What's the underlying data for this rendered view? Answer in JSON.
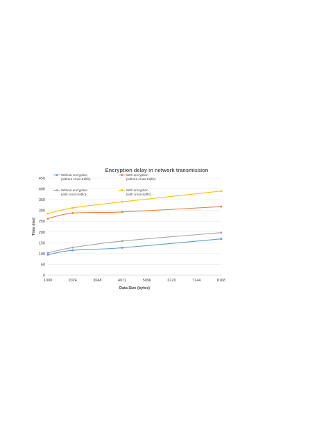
{
  "chart_data": {
    "type": "line",
    "title": "Encryption delay in network transmission",
    "xlabel": "Data Size (bytes)",
    "ylabel": "Time (ms)",
    "x_ticks": [
      1000,
      2024,
      3048,
      4072,
      5096,
      6120,
      7144,
      8168
    ],
    "xlim": [
      1000,
      8168
    ],
    "ylim": [
      0,
      450
    ],
    "y_ticks": [
      0,
      50,
      100,
      150,
      200,
      250,
      300,
      350,
      400,
      450
    ],
    "grid": true,
    "legend_position": "top-left",
    "x": [
      1000,
      2024,
      4072,
      8168
    ],
    "series": [
      {
        "name": "Without encryption (without cross-traffic)",
        "name_lines": [
          "Without encryption",
          "(without cross-traffic)"
        ],
        "color": "#5b9bd5",
        "values": [
          95,
          115,
          127,
          168
        ]
      },
      {
        "name": "With encryption (without cross-traffic)",
        "name_lines": [
          "With encryption",
          "(without cross-traffic)"
        ],
        "color": "#ed7d31",
        "values": [
          262,
          288,
          293,
          318
        ]
      },
      {
        "name": "Without encryption (with cross-traffic)",
        "name_lines": [
          "Without encryption",
          "(with cross-traffic)"
        ],
        "color": "#a5a5a5",
        "values": [
          103,
          128,
          158,
          197
        ]
      },
      {
        "name": "With encryption (with cross-traffic)",
        "name_lines": [
          "With encryption",
          "(with cross-traffic)"
        ],
        "color": "#ffc000",
        "values": [
          286,
          312,
          340,
          390
        ]
      }
    ]
  }
}
